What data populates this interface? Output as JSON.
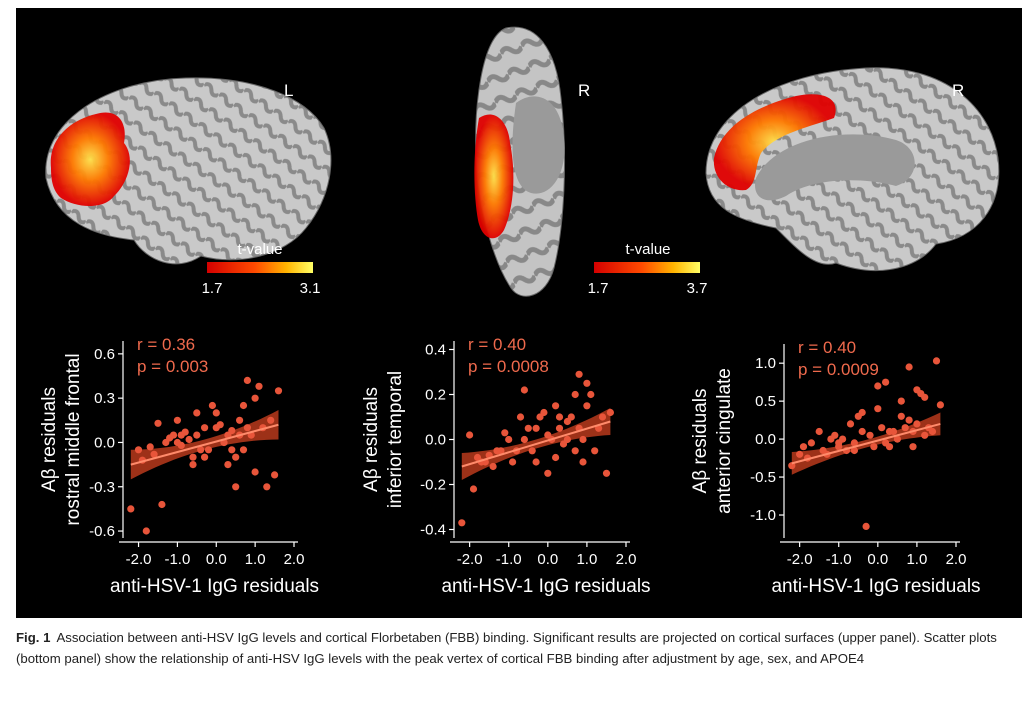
{
  "figure": {
    "brains": [
      {
        "hemisphere": "L",
        "colorbar_title": "t-value",
        "colorbar_min": "1.7",
        "colorbar_max": "3.1"
      },
      {
        "hemisphere": "R",
        "colorbar_title": "t-value",
        "colorbar_min": "1.7",
        "colorbar_max": "3.7"
      },
      {
        "hemisphere": "R",
        "colorbar_title": "",
        "colorbar_min": "",
        "colorbar_max": ""
      }
    ],
    "colors": {
      "background": "#000000",
      "point": "#e8553a",
      "line": "#ff8a6a",
      "band": "#b83a1c",
      "text": "#ffffff",
      "stat_text": "#f06a4d",
      "cortex_gyri": "#c9c9c9",
      "cortex_sulci": "#8a8a8a"
    }
  },
  "chart_data": [
    {
      "type": "scatter",
      "title": "",
      "xlabel": "anti-HSV-1 IgG residuals",
      "ylabel": [
        "Aβ residuals",
        "rostral middle frontal"
      ],
      "annotation": [
        "r = 0.36",
        "p = 0.003"
      ],
      "xlim": [
        -2.4,
        2.0
      ],
      "ylim": [
        -0.62,
        0.66
      ],
      "xticks": [
        -2.0,
        -1.0,
        0.0,
        1.0,
        2.0
      ],
      "xtick_labels": [
        "-2.0",
        "-1.0",
        "0.0",
        "1.0",
        "2.0"
      ],
      "yticks": [
        -0.6,
        -0.3,
        0.0,
        0.3,
        0.6
      ],
      "ytick_labels": [
        "-0.6",
        "-0.3",
        "0.0",
        "0.3",
        "0.6"
      ],
      "fit": {
        "x": [
          -2.2,
          1.6
        ],
        "y": [
          -0.15,
          0.12
        ],
        "ci_halfwidth_ends": 0.1,
        "ci_halfwidth_mid": 0.035
      },
      "x": [
        -2.2,
        -2.0,
        -1.9,
        -1.8,
        -1.7,
        -1.5,
        -1.4,
        -1.3,
        -1.2,
        -1.1,
        -1.0,
        -0.9,
        -0.8,
        -0.7,
        -0.6,
        -0.5,
        -0.5,
        -0.4,
        -0.3,
        -0.2,
        -0.1,
        0.0,
        0.0,
        0.1,
        0.2,
        0.3,
        0.4,
        0.5,
        0.6,
        0.7,
        0.8,
        0.9,
        1.0,
        1.1,
        1.2,
        1.3,
        1.5,
        1.6,
        -0.9,
        0.3,
        0.7,
        -0.3,
        0.5,
        1.0,
        -1.0,
        0.2,
        0.8,
        1.4,
        -0.6,
        0.4,
        -1.6,
        0.6
      ],
      "y": [
        -0.45,
        -0.05,
        -0.12,
        -0.6,
        -0.03,
        0.13,
        -0.42,
        0.0,
        0.03,
        0.05,
        0.0,
        0.05,
        0.07,
        0.02,
        -0.15,
        0.05,
        0.2,
        -0.05,
        -0.1,
        -0.05,
        0.25,
        0.1,
        0.2,
        0.12,
        0.0,
        -0.15,
        0.08,
        -0.3,
        0.15,
        0.25,
        0.42,
        0.05,
        -0.2,
        0.38,
        0.1,
        -0.3,
        -0.22,
        0.35,
        -0.02,
        0.05,
        -0.05,
        0.1,
        -0.1,
        0.3,
        0.15,
        0.0,
        0.1,
        0.15,
        -0.1,
        -0.05,
        -0.08,
        0.05
      ]
    },
    {
      "type": "scatter",
      "title": "",
      "xlabel": "anti-HSV-1 IgG residuals",
      "ylabel": [
        "Aβ residuals",
        "inferior temporal"
      ],
      "annotation": [
        "r = 0.40",
        "p = 0.0008"
      ],
      "xlim": [
        -2.4,
        2.0
      ],
      "ylim": [
        -0.42,
        0.42
      ],
      "xticks": [
        -2.0,
        -1.0,
        0.0,
        1.0,
        2.0
      ],
      "xtick_labels": [
        "-2.0",
        "-1.0",
        "0.0",
        "1.0",
        "2.0"
      ],
      "yticks": [
        -0.4,
        -0.2,
        0.0,
        0.2,
        0.4
      ],
      "ytick_labels": [
        "-0.4",
        "-0.2",
        "0.0",
        "0.2",
        "0.4"
      ],
      "fit": {
        "x": [
          -2.2,
          1.6
        ],
        "y": [
          -0.12,
          0.08
        ],
        "ci_halfwidth_ends": 0.06,
        "ci_halfwidth_mid": 0.02
      },
      "x": [
        -2.2,
        -2.0,
        -1.9,
        -1.8,
        -1.7,
        -1.5,
        -1.4,
        -1.3,
        -1.2,
        -1.1,
        -1.0,
        -0.9,
        -0.8,
        -0.7,
        -0.6,
        -0.5,
        -0.4,
        -0.3,
        -0.2,
        -0.1,
        0.0,
        0.1,
        0.2,
        0.3,
        0.4,
        0.5,
        0.6,
        0.7,
        0.8,
        0.9,
        1.0,
        1.1,
        1.2,
        1.3,
        1.4,
        1.5,
        1.6,
        -0.6,
        0.3,
        0.7,
        -0.3,
        0.5,
        1.0,
        0.2,
        0.8,
        -1.6,
        0.0,
        0.9
      ],
      "y": [
        -0.37,
        0.02,
        -0.22,
        -0.08,
        -0.1,
        -0.07,
        -0.12,
        -0.05,
        -0.05,
        0.03,
        0.0,
        -0.1,
        -0.05,
        0.1,
        0.0,
        0.05,
        -0.05,
        0.05,
        0.1,
        0.12,
        0.02,
        0.0,
        0.15,
        0.05,
        -0.02,
        0.08,
        0.1,
        -0.05,
        0.29,
        -0.1,
        0.25,
        0.2,
        -0.05,
        0.05,
        0.1,
        -0.15,
        0.12,
        0.22,
        0.1,
        0.2,
        -0.1,
        0.0,
        0.15,
        -0.08,
        0.05,
        -0.1,
        -0.15,
        0.0
      ]
    },
    {
      "type": "scatter",
      "title": "",
      "xlabel": "anti-HSV-1 IgG residuals",
      "ylabel": [
        "Aβ residuals",
        "anterior cingulate"
      ],
      "annotation": [
        "r = 0.40",
        "p = 0.0009"
      ],
      "xlim": [
        -2.4,
        2.0
      ],
      "ylim": [
        -1.25,
        1.2
      ],
      "xticks": [
        -2.0,
        -1.0,
        0.0,
        1.0,
        2.0
      ],
      "xtick_labels": [
        "-2.0",
        "-1.0",
        "0.0",
        "1.0",
        "2.0"
      ],
      "yticks": [
        -1.0,
        -0.5,
        0.0,
        0.5,
        1.0
      ],
      "ytick_labels": [
        "-1.0",
        "-0.5",
        "0.0",
        "0.5",
        "1.0"
      ],
      "fit": {
        "x": [
          -2.2,
          1.6
        ],
        "y": [
          -0.32,
          0.2
        ],
        "ci_halfwidth_ends": 0.15,
        "ci_halfwidth_mid": 0.05
      },
      "x": [
        -2.2,
        -2.0,
        -1.9,
        -1.8,
        -1.7,
        -1.5,
        -1.4,
        -1.3,
        -1.2,
        -1.1,
        -1.0,
        -0.9,
        -0.8,
        -0.7,
        -0.6,
        -0.5,
        -0.4,
        -0.3,
        -0.2,
        -0.1,
        0.0,
        0.1,
        0.2,
        0.3,
        0.4,
        0.5,
        0.6,
        0.7,
        0.8,
        0.9,
        1.0,
        1.1,
        1.2,
        1.3,
        1.4,
        1.5,
        1.6,
        -0.4,
        0.0,
        0.3,
        0.8,
        1.2,
        -0.6,
        0.6,
        0.9,
        -1.0,
        0.2,
        1.0
      ],
      "y": [
        -0.35,
        -0.2,
        -0.1,
        -0.25,
        -0.05,
        0.1,
        -0.15,
        -0.2,
        0.0,
        0.05,
        -0.1,
        0.0,
        -0.15,
        0.2,
        -0.05,
        0.3,
        0.35,
        -1.15,
        0.05,
        -0.1,
        0.7,
        0.15,
        0.75,
        -0.1,
        0.1,
        0.0,
        0.5,
        0.15,
        0.95,
        -0.1,
        0.2,
        0.6,
        0.05,
        0.15,
        0.1,
        1.03,
        0.45,
        0.1,
        0.4,
        0.1,
        0.25,
        0.55,
        -0.15,
        0.3,
        0.1,
        -0.05,
        -0.05,
        0.65
      ]
    }
  ],
  "caption": {
    "label": "Fig. 1",
    "text": "Association between anti-HSV IgG levels and cortical Florbetaben (FBB) binding. Significant results are projected on cortical surfaces (upper panel). Scatter plots (bottom panel) show the relationship of anti-HSV IgG levels with the peak vertex of cortical FBB binding after adjustment by age, sex, and APOE4"
  }
}
